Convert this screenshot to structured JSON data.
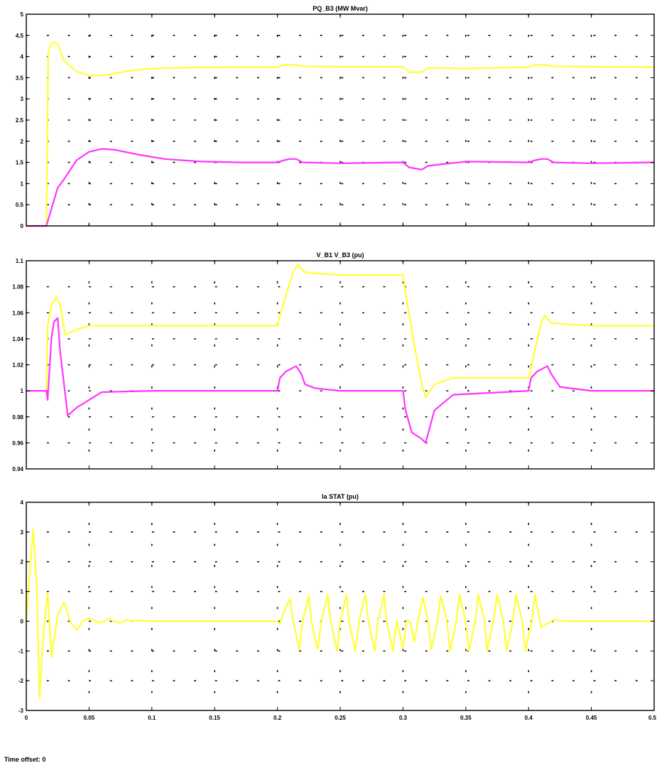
{
  "footer": {
    "time_offset": "Time offset: 0"
  },
  "colors": {
    "yellow": "#ffff33",
    "magenta": "#ff33ff",
    "axes": "#000000",
    "grid": "#000000",
    "background": "#ffffff"
  },
  "chart_data": [
    {
      "type": "line",
      "title": "PQ_B3 (MW Mvar)",
      "xlim": [
        0,
        0.5
      ],
      "ylim": [
        0,
        5
      ],
      "xticks": [
        0,
        0.05,
        0.1,
        0.15,
        0.2,
        0.25,
        0.3,
        0.35,
        0.4,
        0.45,
        0.5
      ],
      "xtick_labels": [
        "",
        "",
        "",
        "",
        "",
        "",
        "",
        "",
        "",
        "",
        ""
      ],
      "yticks": [
        0,
        0.5,
        1,
        1.5,
        2,
        2.5,
        3,
        3.5,
        4,
        4.5,
        5
      ],
      "ytick_labels": [
        "0",
        "0.5",
        "1",
        "1.5",
        "2",
        "2.5",
        "3",
        "3.5",
        "4",
        "4.5",
        "5"
      ],
      "grid": "dotted",
      "series": [
        {
          "color": "yellow",
          "x": [
            0,
            0.016,
            0.0175,
            0.019,
            0.022,
            0.025,
            0.03,
            0.04,
            0.05,
            0.06,
            0.08,
            0.1,
            0.13,
            0.16,
            0.2,
            0.205,
            0.215,
            0.22,
            0.25,
            0.3,
            0.305,
            0.315,
            0.32,
            0.35,
            0.4,
            0.405,
            0.415,
            0.42,
            0.45,
            0.5
          ],
          "y": [
            0,
            0,
            4.1,
            4.25,
            4.35,
            4.3,
            3.9,
            3.65,
            3.55,
            3.55,
            3.65,
            3.72,
            3.74,
            3.75,
            3.75,
            3.8,
            3.8,
            3.77,
            3.76,
            3.76,
            3.63,
            3.63,
            3.73,
            3.72,
            3.75,
            3.8,
            3.8,
            3.77,
            3.76,
            3.75
          ]
        },
        {
          "color": "magenta",
          "x": [
            0,
            0.016,
            0.02,
            0.025,
            0.03,
            0.04,
            0.05,
            0.06,
            0.07,
            0.09,
            0.11,
            0.14,
            0.17,
            0.2,
            0.205,
            0.21,
            0.215,
            0.22,
            0.25,
            0.3,
            0.305,
            0.315,
            0.32,
            0.35,
            0.4,
            0.405,
            0.41,
            0.415,
            0.42,
            0.45,
            0.5
          ],
          "y": [
            0,
            0,
            0.4,
            0.9,
            1.1,
            1.55,
            1.75,
            1.82,
            1.8,
            1.68,
            1.58,
            1.52,
            1.5,
            1.5,
            1.55,
            1.58,
            1.58,
            1.5,
            1.48,
            1.5,
            1.38,
            1.33,
            1.42,
            1.52,
            1.5,
            1.55,
            1.58,
            1.58,
            1.5,
            1.48,
            1.5
          ]
        }
      ]
    },
    {
      "type": "line",
      "title": "V_B1 V_B3 (pu)",
      "xlim": [
        0,
        0.5
      ],
      "ylim": [
        0.94,
        1.1
      ],
      "xticks": [
        0,
        0.05,
        0.1,
        0.15,
        0.2,
        0.25,
        0.3,
        0.35,
        0.4,
        0.45,
        0.5
      ],
      "xtick_labels": [
        "",
        "",
        "",
        "",
        "",
        "",
        "",
        "",
        "",
        "",
        ""
      ],
      "yticks": [
        0.94,
        0.96,
        0.98,
        1,
        1.02,
        1.04,
        1.06,
        1.08,
        1.1
      ],
      "ytick_labels": [
        "0.94",
        "0.96",
        "0.98",
        "1",
        "1.02",
        "1.04",
        "1.06",
        "1.08",
        "1.1"
      ],
      "grid": "dotted",
      "series": [
        {
          "color": "yellow",
          "x": [
            0,
            0.016,
            0.017,
            0.02,
            0.024,
            0.027,
            0.031,
            0.04,
            0.05,
            0.1,
            0.2,
            0.202,
            0.212,
            0.216,
            0.222,
            0.25,
            0.3,
            0.302,
            0.31,
            0.315,
            0.318,
            0.325,
            0.34,
            0.4,
            0.402,
            0.41,
            0.413,
            0.418,
            0.45,
            0.5
          ],
          "y": [
            1.0,
            1.0,
            1.05,
            1.066,
            1.072,
            1.066,
            1.043,
            1.047,
            1.05,
            1.05,
            1.05,
            1.058,
            1.09,
            1.097,
            1.091,
            1.089,
            1.089,
            1.075,
            1.03,
            1.005,
            0.995,
            1.005,
            1.01,
            1.01,
            1.018,
            1.052,
            1.058,
            1.052,
            1.05,
            1.05
          ]
        },
        {
          "color": "magenta",
          "x": [
            0,
            0.016,
            0.017,
            0.02,
            0.022,
            0.025,
            0.027,
            0.033,
            0.04,
            0.06,
            0.1,
            0.2,
            0.202,
            0.207,
            0.215,
            0.219,
            0.222,
            0.23,
            0.25,
            0.3,
            0.302,
            0.307,
            0.315,
            0.318,
            0.325,
            0.34,
            0.4,
            0.402,
            0.407,
            0.415,
            0.418,
            0.425,
            0.45,
            0.5
          ],
          "y": [
            1.0,
            1.0,
            0.993,
            1.04,
            1.053,
            1.056,
            1.03,
            0.981,
            0.987,
            0.999,
            1.0,
            1.0,
            1.01,
            1.015,
            1.019,
            1.013,
            1.005,
            1.002,
            1.0,
            1.0,
            0.985,
            0.968,
            0.963,
            0.96,
            0.985,
            0.997,
            1.0,
            1.01,
            1.015,
            1.019,
            1.013,
            1.003,
            1.0,
            1.0
          ]
        }
      ]
    },
    {
      "type": "line",
      "title": "Ia STAT (pu)",
      "xlim": [
        0,
        0.5
      ],
      "ylim": [
        -3,
        4
      ],
      "xticks": [
        0,
        0.05,
        0.1,
        0.15,
        0.2,
        0.25,
        0.3,
        0.35,
        0.4,
        0.45,
        0.5
      ],
      "xtick_labels": [
        "0",
        "0.05",
        "0.1",
        "0.15",
        "0.2",
        "0.25",
        "0.3",
        "0.35",
        "0.4",
        "0.45",
        "0.5"
      ],
      "yticks": [
        -3,
        -2,
        -1,
        0,
        1,
        2,
        3,
        4
      ],
      "ytick_labels": [
        "-3",
        "-2",
        "-1",
        "0",
        "1",
        "2",
        "3",
        "4"
      ],
      "grid": "dotted",
      "series": [
        {
          "color": "yellow",
          "x": [
            0,
            0.003,
            0.0055,
            0.0085,
            0.0105,
            0.0135,
            0.017,
            0.02,
            0.025,
            0.03,
            0.035,
            0.04,
            0.045,
            0.05,
            0.055,
            0.06,
            0.065,
            0.07,
            0.075,
            0.08,
            0.085,
            0.09,
            0.1,
            0.2,
            0.202,
            0.205,
            0.21,
            0.2125,
            0.2175,
            0.22,
            0.225,
            0.227,
            0.232,
            0.235,
            0.24,
            0.2425,
            0.2475,
            0.25,
            0.255,
            0.257,
            0.262,
            0.265,
            0.27,
            0.2725,
            0.2775,
            0.28,
            0.285,
            0.287,
            0.292,
            0.295,
            0.3,
            0.303,
            0.306,
            0.309,
            0.312,
            0.316,
            0.32,
            0.3225,
            0.3275,
            0.33,
            0.335,
            0.3375,
            0.3425,
            0.345,
            0.35,
            0.3525,
            0.3575,
            0.36,
            0.365,
            0.367,
            0.372,
            0.375,
            0.38,
            0.3825,
            0.3875,
            0.39,
            0.395,
            0.3975,
            0.4025,
            0.405,
            0.41,
            0.42,
            0.43,
            0.5
          ],
          "y": [
            0,
            1.8,
            3.1,
            1.0,
            -2.6,
            -0.5,
            0.95,
            -1.2,
            0.2,
            0.65,
            0.0,
            -0.3,
            0.0,
            0.1,
            0.0,
            -0.05,
            0.08,
            0.0,
            -0.05,
            0.05,
            0.0,
            0.03,
            0.0,
            0.0,
            -0.1,
            0.3,
            0.75,
            0.0,
            -0.95,
            0.0,
            0.85,
            0.0,
            -0.95,
            0.0,
            0.9,
            0.0,
            -1.0,
            0.0,
            0.9,
            0.0,
            -1.0,
            0.0,
            0.9,
            0.0,
            -1.0,
            0.0,
            0.9,
            0.0,
            -1.0,
            0.0,
            -0.9,
            0.05,
            -0.05,
            -0.7,
            0.05,
            0.8,
            0.0,
            -0.95,
            0.0,
            0.85,
            0.0,
            -1.0,
            0.0,
            0.9,
            0.0,
            -1.0,
            0.0,
            0.9,
            0.0,
            -1.0,
            0.0,
            0.9,
            0.0,
            -1.0,
            0.0,
            0.9,
            0.0,
            -1.0,
            0.0,
            0.9,
            -0.2,
            0.05,
            0.0,
            0.0
          ]
        }
      ]
    }
  ]
}
